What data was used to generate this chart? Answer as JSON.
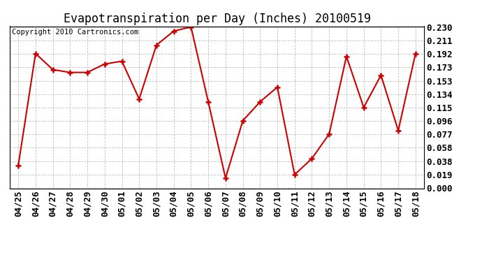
{
  "title": "Evapotranspiration per Day (Inches) 20100519",
  "copyright": "Copyright 2010 Cartronics.com",
  "x_labels": [
    "04/25",
    "04/26",
    "04/27",
    "04/28",
    "04/29",
    "04/30",
    "05/01",
    "05/02",
    "05/03",
    "05/04",
    "05/05",
    "05/06",
    "05/07",
    "05/08",
    "05/09",
    "05/10",
    "05/11",
    "05/12",
    "05/13",
    "05/14",
    "05/15",
    "05/16",
    "05/17",
    "05/18"
  ],
  "y_values": [
    0.032,
    0.192,
    0.169,
    0.165,
    0.165,
    0.177,
    0.181,
    0.127,
    0.204,
    0.224,
    0.23,
    0.123,
    0.014,
    0.096,
    0.123,
    0.144,
    0.019,
    0.042,
    0.077,
    0.188,
    0.115,
    0.161,
    0.082,
    0.192
  ],
  "y_ticks": [
    0.0,
    0.019,
    0.038,
    0.058,
    0.077,
    0.096,
    0.115,
    0.134,
    0.153,
    0.173,
    0.192,
    0.211,
    0.23
  ],
  "line_color": "#cc0000",
  "marker": "+",
  "marker_size": 6,
  "marker_edge_width": 1.8,
  "line_width": 1.5,
  "bg_color": "#ffffff",
  "grid_color": "#c0c0c0",
  "y_min": 0.0,
  "y_max": 0.23,
  "title_fontsize": 12,
  "copyright_fontsize": 7.5,
  "tick_fontsize": 9
}
